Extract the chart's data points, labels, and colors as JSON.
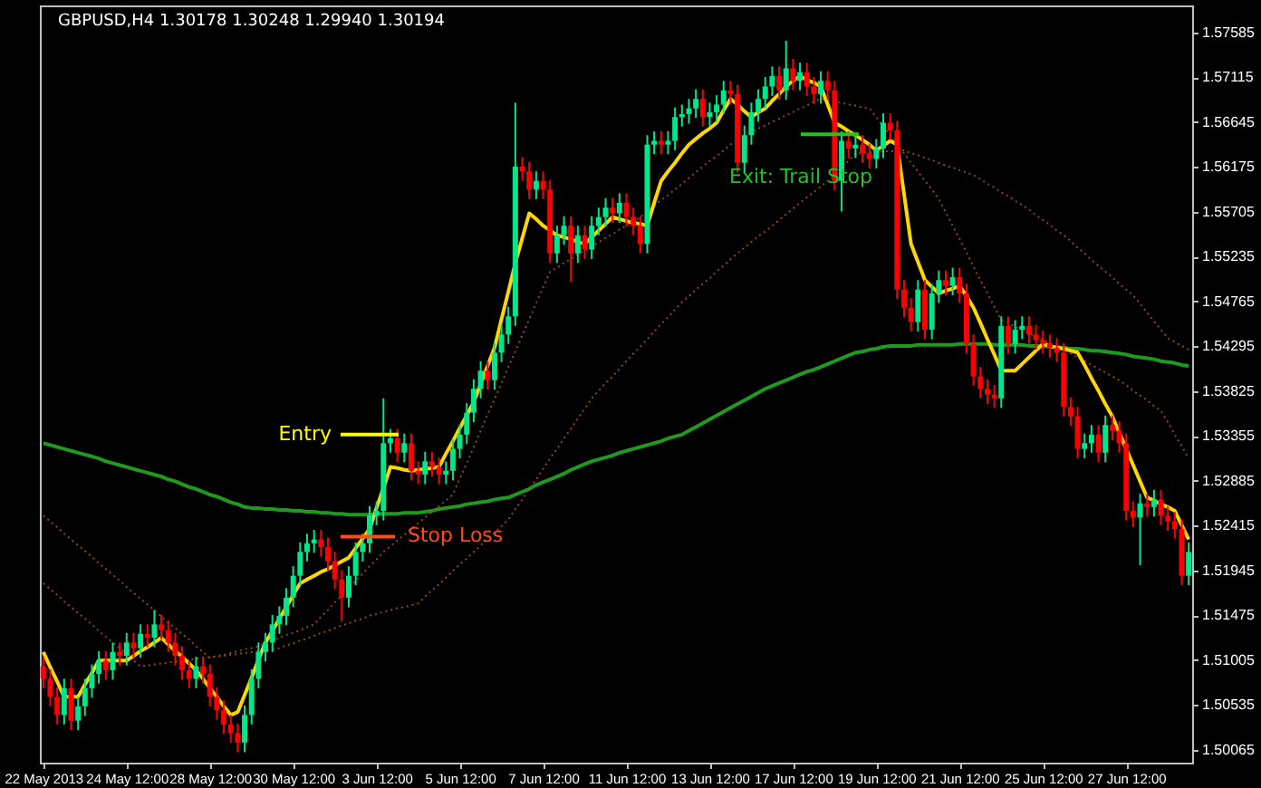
{
  "chart_data": {
    "type": "candlestick",
    "title": "GBPUSD,H4  1.30178 1.30248 1.29940 1.30194",
    "categories": [
      "22 May 2013",
      null,
      null,
      null,
      null,
      null,
      null,
      null,
      null,
      null,
      null,
      null,
      "24 May 12:00",
      null,
      null,
      null,
      null,
      null,
      null,
      null,
      null,
      null,
      null,
      null,
      "28 May 12:00",
      null,
      null,
      null,
      null,
      null,
      null,
      null,
      null,
      null,
      null,
      null,
      "30 May 12:00",
      null,
      null,
      null,
      null,
      null,
      null,
      null,
      null,
      null,
      null,
      null,
      "3 Jun 12:00",
      null,
      null,
      null,
      null,
      null,
      null,
      null,
      null,
      null,
      null,
      null,
      "5 Jun 12:00",
      null,
      null,
      null,
      null,
      null,
      null,
      null,
      null,
      null,
      null,
      null,
      "7 Jun 12:00",
      null,
      null,
      null,
      null,
      null,
      null,
      null,
      null,
      null,
      null,
      null,
      "11 Jun 12:00",
      null,
      null,
      null,
      null,
      null,
      null,
      null,
      null,
      null,
      null,
      null,
      "13 Jun 12:00",
      null,
      null,
      null,
      null,
      null,
      null,
      null,
      null,
      null,
      null,
      null,
      "17 Jun 12:00",
      null,
      null,
      null,
      null,
      null,
      null,
      null,
      null,
      null,
      null,
      null,
      "19 Jun 12:00",
      null,
      null,
      null,
      null,
      null,
      null,
      null,
      null,
      null,
      null,
      null,
      "21 Jun 12:00",
      null,
      null,
      null,
      null,
      null,
      null,
      null,
      null,
      null,
      null,
      null,
      "25 Jun 12:00",
      null,
      null,
      null,
      null,
      null,
      null,
      null,
      null,
      null,
      null,
      null,
      "27 Jun 12:00",
      null,
      null,
      null,
      null,
      null,
      null,
      null,
      null,
      null
    ],
    "ohlc": [
      [
        1.5094,
        1.5104,
        1.5071,
        1.5081
      ],
      [
        1.5081,
        1.5091,
        1.5052,
        1.5062
      ],
      [
        1.5062,
        1.5072,
        1.5033,
        1.5043
      ],
      [
        1.5043,
        1.5081,
        1.5033,
        1.5071
      ],
      [
        1.5071,
        1.5081,
        1.5027,
        1.5037
      ],
      [
        1.5037,
        1.5062,
        1.5027,
        1.5052
      ],
      [
        1.5052,
        1.5081,
        1.5042,
        1.5071
      ],
      [
        1.5071,
        1.5096,
        1.5061,
        1.5086
      ],
      [
        1.5086,
        1.511,
        1.5076,
        1.51
      ],
      [
        1.51,
        1.511,
        1.508,
        1.509
      ],
      [
        1.509,
        1.5119,
        1.508,
        1.5109
      ],
      [
        1.5109,
        1.5119,
        1.5095,
        1.5105
      ],
      [
        1.5105,
        1.5129,
        1.5095,
        1.5119
      ],
      [
        1.5119,
        1.5129,
        1.5103,
        1.5113
      ],
      [
        1.5113,
        1.5138,
        1.5103,
        1.5128
      ],
      [
        1.5128,
        1.5138,
        1.5114,
        1.5124
      ],
      [
        1.5124,
        1.5153,
        1.5114,
        1.5138
      ],
      [
        1.5138,
        1.5148,
        1.5122,
        1.5132
      ],
      [
        1.5132,
        1.5142,
        1.5109,
        1.5119
      ],
      [
        1.5119,
        1.5129,
        1.5095,
        1.5105
      ],
      [
        1.5105,
        1.5115,
        1.508,
        1.509
      ],
      [
        1.509,
        1.51,
        1.5071,
        1.5081
      ],
      [
        1.5081,
        1.5104,
        1.5071,
        1.5094
      ],
      [
        1.5094,
        1.5104,
        1.5076,
        1.5086
      ],
      [
        1.5086,
        1.5096,
        1.5052,
        1.5062
      ],
      [
        1.5062,
        1.5072,
        1.5038,
        1.5048
      ],
      [
        1.5048,
        1.5058,
        1.5023,
        1.5033
      ],
      [
        1.5033,
        1.5043,
        1.5014,
        1.5024
      ],
      [
        1.5024,
        1.5034,
        1.5004,
        1.5014
      ],
      [
        1.5014,
        1.5053,
        1.5004,
        1.5043
      ],
      [
        1.5043,
        1.5091,
        1.5033,
        1.5081
      ],
      [
        1.5081,
        1.5119,
        1.5071,
        1.5109
      ],
      [
        1.5109,
        1.5129,
        1.5099,
        1.5119
      ],
      [
        1.5119,
        1.5148,
        1.5109,
        1.5138
      ],
      [
        1.5138,
        1.5157,
        1.5128,
        1.5147
      ],
      [
        1.5147,
        1.5176,
        1.5137,
        1.5166
      ],
      [
        1.5166,
        1.5199,
        1.5156,
        1.5189
      ],
      [
        1.5189,
        1.5224,
        1.5179,
        1.5214
      ],
      [
        1.5214,
        1.5233,
        1.5204,
        1.5223
      ],
      [
        1.5223,
        1.5237,
        1.5213,
        1.5227
      ],
      [
        1.5227,
        1.5237,
        1.5209,
        1.5219
      ],
      [
        1.5219,
        1.5229,
        1.5194,
        1.5204
      ],
      [
        1.5204,
        1.5214,
        1.5175,
        1.5185
      ],
      [
        1.5185,
        1.5195,
        1.5141,
        1.5166
      ],
      [
        1.5166,
        1.5199,
        1.5156,
        1.5189
      ],
      [
        1.5189,
        1.5224,
        1.5179,
        1.5214
      ],
      [
        1.5214,
        1.5233,
        1.5204,
        1.5223
      ],
      [
        1.5223,
        1.5262,
        1.5213,
        1.5252
      ],
      [
        1.5252,
        1.5267,
        1.5242,
        1.5257
      ],
      [
        1.5257,
        1.5375,
        1.5247,
        1.5328
      ],
      [
        1.5328,
        1.5343,
        1.5318,
        1.5333
      ],
      [
        1.5333,
        1.5343,
        1.5308,
        1.5318
      ],
      [
        1.5318,
        1.5338,
        1.5308,
        1.5328
      ],
      [
        1.5328,
        1.5338,
        1.5289,
        1.5299
      ],
      [
        1.5299,
        1.5309,
        1.5285,
        1.5295
      ],
      [
        1.5295,
        1.5319,
        1.5285,
        1.5309
      ],
      [
        1.5309,
        1.5319,
        1.5293,
        1.5303
      ],
      [
        1.5303,
        1.5313,
        1.5285,
        1.5295
      ],
      [
        1.5295,
        1.5309,
        1.5285,
        1.5299
      ],
      [
        1.5299,
        1.5332,
        1.5289,
        1.5322
      ],
      [
        1.5322,
        1.5347,
        1.5312,
        1.5337
      ],
      [
        1.5337,
        1.537,
        1.5327,
        1.536
      ],
      [
        1.536,
        1.5395,
        1.535,
        1.5385
      ],
      [
        1.5385,
        1.5414,
        1.5375,
        1.5404
      ],
      [
        1.5404,
        1.5414,
        1.5384,
        1.5394
      ],
      [
        1.5394,
        1.5433,
        1.5384,
        1.5423
      ],
      [
        1.5423,
        1.5452,
        1.5413,
        1.5442
      ],
      [
        1.5442,
        1.5471,
        1.5432,
        1.5461
      ],
      [
        1.5461,
        1.5685,
        1.5451,
        1.5618
      ],
      [
        1.5618,
        1.5628,
        1.5603,
        1.5613
      ],
      [
        1.5613,
        1.5623,
        1.5584,
        1.5594
      ],
      [
        1.5594,
        1.5613,
        1.5584,
        1.5603
      ],
      [
        1.5603,
        1.5613,
        1.5584,
        1.5594
      ],
      [
        1.5594,
        1.5604,
        1.5517,
        1.5527
      ],
      [
        1.5527,
        1.5556,
        1.5517,
        1.5546
      ],
      [
        1.5546,
        1.5566,
        1.5536,
        1.5556
      ],
      [
        1.5556,
        1.5566,
        1.5497,
        1.5527
      ],
      [
        1.5527,
        1.5556,
        1.5517,
        1.5546
      ],
      [
        1.5546,
        1.5556,
        1.5521,
        1.5531
      ],
      [
        1.5531,
        1.5566,
        1.5521,
        1.5556
      ],
      [
        1.5556,
        1.5575,
        1.5546,
        1.5565
      ],
      [
        1.5565,
        1.5585,
        1.5555,
        1.5575
      ],
      [
        1.5575,
        1.5585,
        1.5559,
        1.5569
      ],
      [
        1.5569,
        1.559,
        1.5559,
        1.558
      ],
      [
        1.558,
        1.559,
        1.5555,
        1.5565
      ],
      [
        1.5565,
        1.5575,
        1.5546,
        1.5556
      ],
      [
        1.5556,
        1.5566,
        1.5527,
        1.5537
      ],
      [
        1.5537,
        1.5651,
        1.5527,
        1.5641
      ],
      [
        1.5641,
        1.5655,
        1.5631,
        1.5645
      ],
      [
        1.5645,
        1.5655,
        1.5631,
        1.5641
      ],
      [
        1.5641,
        1.5655,
        1.5631,
        1.5645
      ],
      [
        1.5645,
        1.568,
        1.5635,
        1.567
      ],
      [
        1.567,
        1.5683,
        1.566,
        1.5673
      ],
      [
        1.5673,
        1.5689,
        1.5663,
        1.5679
      ],
      [
        1.5679,
        1.5699,
        1.5669,
        1.5689
      ],
      [
        1.5689,
        1.5699,
        1.566,
        1.567
      ],
      [
        1.567,
        1.5685,
        1.566,
        1.5675
      ],
      [
        1.5675,
        1.5693,
        1.5665,
        1.5683
      ],
      [
        1.5683,
        1.5708,
        1.5673,
        1.5698
      ],
      [
        1.5698,
        1.5708,
        1.5684,
        1.5694
      ],
      [
        1.5694,
        1.5704,
        1.5612,
        1.5622
      ],
      [
        1.5622,
        1.5661,
        1.5612,
        1.5651
      ],
      [
        1.5651,
        1.5685,
        1.5641,
        1.5675
      ],
      [
        1.5675,
        1.5699,
        1.5665,
        1.5689
      ],
      [
        1.5689,
        1.5712,
        1.5679,
        1.5702
      ],
      [
        1.5702,
        1.5723,
        1.5692,
        1.5713
      ],
      [
        1.5713,
        1.5723,
        1.5688,
        1.5698
      ],
      [
        1.5698,
        1.575,
        1.5688,
        1.5721
      ],
      [
        1.5721,
        1.5731,
        1.5698,
        1.5708
      ],
      [
        1.5708,
        1.5727,
        1.5698,
        1.5717
      ],
      [
        1.5717,
        1.5727,
        1.5692,
        1.5702
      ],
      [
        1.5702,
        1.5712,
        1.5684,
        1.5694
      ],
      [
        1.5694,
        1.5718,
        1.5684,
        1.5708
      ],
      [
        1.5708,
        1.5718,
        1.5688,
        1.5698
      ],
      [
        1.5698,
        1.5708,
        1.5593,
        1.5603
      ],
      [
        1.5603,
        1.5655,
        1.5571,
        1.5645
      ],
      [
        1.5645,
        1.5655,
        1.5627,
        1.5637
      ],
      [
        1.5637,
        1.5651,
        1.5627,
        1.5641
      ],
      [
        1.5641,
        1.5651,
        1.5622,
        1.5632
      ],
      [
        1.5632,
        1.5642,
        1.5616,
        1.5626
      ],
      [
        1.5626,
        1.5647,
        1.5616,
        1.5637
      ],
      [
        1.5637,
        1.5674,
        1.5627,
        1.5664
      ],
      [
        1.5664,
        1.5674,
        1.5646,
        1.5656
      ],
      [
        1.5656,
        1.5666,
        1.5479,
        1.5489
      ],
      [
        1.5489,
        1.5499,
        1.546,
        1.547
      ],
      [
        1.547,
        1.548,
        1.5445,
        1.5455
      ],
      [
        1.5455,
        1.5499,
        1.5445,
        1.5489
      ],
      [
        1.5489,
        1.5499,
        1.5437,
        1.5447
      ],
      [
        1.5447,
        1.5495,
        1.5437,
        1.5485
      ],
      [
        1.5485,
        1.5509,
        1.5475,
        1.5499
      ],
      [
        1.5499,
        1.5509,
        1.5483,
        1.5493
      ],
      [
        1.5493,
        1.5512,
        1.5483,
        1.5502
      ],
      [
        1.5502,
        1.5512,
        1.5475,
        1.5485
      ],
      [
        1.5485,
        1.5495,
        1.5422,
        1.5432
      ],
      [
        1.5432,
        1.5442,
        1.5388,
        1.5398
      ],
      [
        1.5398,
        1.5408,
        1.5375,
        1.5385
      ],
      [
        1.5385,
        1.5395,
        1.5369,
        1.5379
      ],
      [
        1.5379,
        1.5389,
        1.5365,
        1.5375
      ],
      [
        1.5375,
        1.5461,
        1.5365,
        1.5451
      ],
      [
        1.5451,
        1.5461,
        1.5422,
        1.5432
      ],
      [
        1.5432,
        1.5457,
        1.5422,
        1.5447
      ],
      [
        1.5447,
        1.5461,
        1.5437,
        1.5451
      ],
      [
        1.5451,
        1.5461,
        1.5432,
        1.5442
      ],
      [
        1.5442,
        1.5452,
        1.5426,
        1.5436
      ],
      [
        1.5436,
        1.5446,
        1.5422,
        1.5432
      ],
      [
        1.5432,
        1.5442,
        1.5418,
        1.5428
      ],
      [
        1.5428,
        1.5438,
        1.5413,
        1.5423
      ],
      [
        1.5423,
        1.5433,
        1.5356,
        1.5366
      ],
      [
        1.5366,
        1.5376,
        1.5346,
        1.5356
      ],
      [
        1.5356,
        1.5366,
        1.5312,
        1.5322
      ],
      [
        1.5322,
        1.5338,
        1.5312,
        1.5328
      ],
      [
        1.5328,
        1.5347,
        1.5318,
        1.5337
      ],
      [
        1.5337,
        1.5347,
        1.5308,
        1.5318
      ],
      [
        1.5318,
        1.5357,
        1.5308,
        1.5347
      ],
      [
        1.5347,
        1.5357,
        1.5331,
        1.5341
      ],
      [
        1.5341,
        1.5351,
        1.5318,
        1.5328
      ],
      [
        1.5328,
        1.5338,
        1.5247,
        1.5257
      ],
      [
        1.5257,
        1.5267,
        1.524,
        1.525
      ],
      [
        1.525,
        1.5275,
        1.52,
        1.5265
      ],
      [
        1.5265,
        1.5275,
        1.5251,
        1.5261
      ],
      [
        1.5261,
        1.5279,
        1.5251,
        1.5269
      ],
      [
        1.5269,
        1.5279,
        1.5242,
        1.5252
      ],
      [
        1.5252,
        1.5262,
        1.5236,
        1.5246
      ],
      [
        1.5246,
        1.5256,
        1.5228,
        1.5238
      ],
      [
        1.5238,
        1.5248,
        1.5179,
        1.5189
      ],
      [
        1.5189,
        1.5224,
        1.5179,
        1.5214
      ]
    ],
    "colors": [
      "#ff0000",
      "#ff0000",
      "#ff0000",
      "#00e68a",
      "#ff0000",
      "#00e68a",
      "#00e68a",
      "#00e68a",
      "#00e68a",
      "#ff0000",
      "#00e68a",
      "#ff0000",
      "#00e68a",
      "#ff0000",
      "#00e68a",
      "#ff0000",
      "#00e68a",
      "#ff0000",
      "#ff0000",
      "#ff0000",
      "#ff0000",
      "#ff0000",
      "#00e68a",
      "#ff0000",
      "#ff0000",
      "#ff0000",
      "#ff0000",
      "#ff0000",
      "#ff0000",
      "#00e68a",
      "#00e68a",
      "#00e68a",
      "#00e68a",
      "#00e68a",
      "#00e68a",
      "#00e68a",
      "#00e68a",
      "#00e68a",
      "#00e68a",
      "#00e68a",
      "#ff0000",
      "#ff0000",
      "#ff0000",
      "#ff0000",
      "#00e68a",
      "#00e68a",
      "#00e68a",
      "#00e68a",
      "#00e68a",
      "#00e68a",
      "#00e68a",
      "#ff0000",
      "#00e68a",
      "#ff0000",
      "#ff0000",
      "#00e68a",
      "#ff0000",
      "#ff0000",
      "#00e68a",
      "#00e68a",
      "#00e68a",
      "#00e68a",
      "#00e68a",
      "#00e68a",
      "#ff0000",
      "#00e68a",
      "#00e68a",
      "#00e68a",
      "#00e68a",
      "#ff0000",
      "#ff0000",
      "#00e68a",
      "#ff0000",
      "#ff0000",
      "#00e68a",
      "#00e68a",
      "#ff0000",
      "#00e68a",
      "#ff0000",
      "#00e68a",
      "#00e68a",
      "#00e68a",
      "#ff0000",
      "#00e68a",
      "#ff0000",
      "#ff0000",
      "#ff0000",
      "#00e68a",
      "#00e68a",
      "#ff0000",
      "#00e68a",
      "#00e68a",
      "#00e68a",
      "#00e68a",
      "#00e68a",
      "#ff0000",
      "#00e68a",
      "#00e68a",
      "#00e68a",
      "#ff0000",
      "#ff0000",
      "#00e68a",
      "#00e68a",
      "#00e68a",
      "#00e68a",
      "#00e68a",
      "#ff0000",
      "#00e68a",
      "#ff0000",
      "#00e68a",
      "#ff0000",
      "#ff0000",
      "#00e68a",
      "#ff0000",
      "#ff0000",
      "#00e68a",
      "#ff0000",
      "#00e68a",
      "#ff0000",
      "#ff0000",
      "#00e68a",
      "#00e68a",
      "#ff0000",
      "#ff0000",
      "#ff0000",
      "#ff0000",
      "#00e68a",
      "#ff0000",
      "#00e68a",
      "#00e68a",
      "#ff0000",
      "#00e68a",
      "#ff0000",
      "#ff0000",
      "#ff0000",
      "#ff0000",
      "#ff0000",
      "#ff0000",
      "#00e68a",
      "#ff0000",
      "#00e68a",
      "#00e68a",
      "#ff0000",
      "#ff0000",
      "#ff0000",
      "#ff0000",
      "#ff0000",
      "#ff0000",
      "#ff0000",
      "#ff0000",
      "#00e68a",
      "#00e68a",
      "#ff0000",
      "#00e68a",
      "#ff0000",
      "#ff0000",
      "#ff0000",
      "#ff0000",
      "#00e68a",
      "#ff0000",
      "#00e68a",
      "#ff0000",
      "#ff0000",
      "#ff0000",
      "#ff0000",
      "#00e68a"
    ],
    "ylim": [
      1.4993,
      1.5787
    ],
    "yticks": [
      1.50065,
      1.50535,
      1.51005,
      1.51475,
      1.51945,
      1.52415,
      1.52885,
      1.53355,
      1.53825,
      1.54295,
      1.54765,
      1.55235,
      1.55705,
      1.56175,
      1.56645,
      1.57115,
      1.57585
    ],
    "grid": false,
    "series": [
      {
        "type": "line",
        "color": "#1f9a1f",
        "line_style": "solid",
        "values": [
          1.5328,
          1.5326,
          1.5324,
          1.5322,
          1.532,
          1.5318,
          1.5316,
          1.5314,
          1.5312,
          1.5309,
          1.5307,
          1.5305,
          1.5303,
          1.5301,
          1.5299,
          1.5297,
          1.5295,
          1.5293,
          1.529,
          1.5288,
          1.5285,
          1.5282,
          1.528,
          1.5277,
          1.5274,
          1.5272,
          1.5269,
          1.5266,
          1.5264,
          1.5261,
          1.526,
          1.526,
          1.5259,
          1.5259,
          1.5258,
          1.5258,
          1.5257,
          1.5257,
          1.5256,
          1.5256,
          1.5255,
          1.5255,
          1.5254,
          1.5254,
          1.5253,
          1.5253,
          1.5253,
          1.5253,
          1.5254,
          1.5254,
          1.5254,
          1.5254,
          1.5255,
          1.5255,
          1.5255,
          1.5256,
          1.5257,
          1.5259,
          1.526,
          1.5261,
          1.5262,
          1.5264,
          1.5265,
          1.5266,
          1.5267,
          1.5269,
          1.527,
          1.5271,
          1.5274,
          1.5277,
          1.528,
          1.5284,
          1.5287,
          1.529,
          1.5293,
          1.5296,
          1.53,
          1.5303,
          1.5306,
          1.5309,
          1.5311,
          1.5313,
          1.5315,
          1.5318,
          1.532,
          1.5322,
          1.5324,
          1.5326,
          1.5328,
          1.533,
          1.5333,
          1.5335,
          1.5337,
          1.5341,
          1.5345,
          1.5349,
          1.5353,
          1.5357,
          1.5361,
          1.5365,
          1.5369,
          1.5373,
          1.5377,
          1.5381,
          1.5385,
          1.5388,
          1.5391,
          1.5394,
          1.5397,
          1.54,
          1.5403,
          1.5405,
          1.5408,
          1.5411,
          1.5414,
          1.5417,
          1.542,
          1.5423,
          1.5424,
          1.5426,
          1.5427,
          1.5429,
          1.543,
          1.543,
          1.543,
          1.543,
          1.5431,
          1.5431,
          1.5431,
          1.5431,
          1.5431,
          1.5431,
          1.5432,
          1.5432,
          1.5432,
          1.5432,
          1.5432,
          1.5431,
          1.5431,
          1.5431,
          1.5431,
          1.5431,
          1.543,
          1.543,
          1.543,
          1.5429,
          1.5429,
          1.5428,
          1.5427,
          1.5427,
          1.5426,
          1.5425,
          1.5425,
          1.5424,
          1.5423,
          1.5422,
          1.5421,
          1.5419,
          1.5418,
          1.5417,
          1.5416,
          1.5414,
          1.5413,
          1.5412,
          1.541,
          1.5409
        ]
      },
      {
        "type": "line",
        "color": "#8a4a1c",
        "line_style": "dotted",
        "values": [
          1.5181,
          1.5175,
          1.5169,
          1.5162,
          1.5156,
          1.515,
          1.5144,
          1.5138,
          1.5131,
          1.5125,
          1.5119,
          1.5113,
          1.5106,
          1.51,
          1.5094,
          1.5095,
          1.5096,
          1.5097,
          1.5098,
          1.5099,
          1.51,
          1.5101,
          1.5102,
          1.5103,
          1.5104,
          1.5104,
          1.5105,
          1.5106,
          1.5107,
          1.5108,
          1.5109,
          1.511,
          1.5111,
          1.5112,
          1.5113,
          1.5116,
          1.5118,
          1.5121,
          1.5123,
          1.5126,
          1.5129,
          1.5131,
          1.5134,
          1.5137,
          1.5139,
          1.5142,
          1.5144,
          1.5147,
          1.5149,
          1.5151,
          1.5153,
          1.5155,
          1.5156,
          1.5158,
          1.516,
          1.5167,
          1.5174,
          1.518,
          1.5187,
          1.5194,
          1.5201,
          1.5207,
          1.5214,
          1.5221,
          1.5228,
          1.5234,
          1.5241,
          1.5248,
          1.5259,
          1.5269,
          1.528,
          1.529,
          1.5301,
          1.5312,
          1.5322,
          1.5333,
          1.5343,
          1.5354,
          1.5364,
          1.5375,
          1.5383,
          1.5391,
          1.5398,
          1.5406,
          1.5414,
          1.5422,
          1.5429,
          1.5437,
          1.5445,
          1.5453,
          1.546,
          1.5468,
          1.5476,
          1.5482,
          1.5489,
          1.5495,
          1.5501,
          1.5508,
          1.5514,
          1.5521,
          1.5527,
          1.5533,
          1.5539,
          1.5545,
          1.555,
          1.5556,
          1.5562,
          1.5568,
          1.5574,
          1.558,
          1.5586,
          1.5591,
          1.5597,
          1.5603,
          1.5609,
          1.5617,
          1.5624,
          1.5632,
          1.5632,
          1.5633,
          1.5633,
          1.5634,
          1.5634,
          1.5635,
          1.5635,
          1.5632,
          1.563,
          1.5627,
          1.5625,
          1.5622,
          1.5619,
          1.5617,
          1.5614,
          1.5612,
          1.5609,
          1.5605,
          1.56,
          1.5596,
          1.5591,
          1.5587,
          1.5582,
          1.5578,
          1.5573,
          1.5567,
          1.5562,
          1.5557,
          1.5551,
          1.5546,
          1.554,
          1.5533,
          1.5527,
          1.552,
          1.5514,
          1.5508,
          1.5502,
          1.5495,
          1.5489,
          1.5483,
          1.5474,
          1.5465,
          1.5456,
          1.5447,
          1.5438,
          1.5434,
          1.543,
          1.5426
        ]
      },
      {
        "type": "line",
        "color": "#8a4a1c",
        "line_style": "dotted",
        "values": [
          1.5252,
          1.5246,
          1.524,
          1.5233,
          1.5227,
          1.5221,
          1.5215,
          1.5209,
          1.5202,
          1.5196,
          1.519,
          1.5184,
          1.5177,
          1.5171,
          1.5165,
          1.5159,
          1.5153,
          1.5146,
          1.514,
          1.5134,
          1.5128,
          1.5122,
          1.5115,
          1.5109,
          1.5103,
          1.5105,
          1.5106,
          1.5108,
          1.511,
          1.5112,
          1.5113,
          1.5115,
          1.5118,
          1.5121,
          1.5124,
          1.5127,
          1.5129,
          1.5132,
          1.5135,
          1.5138,
          1.5146,
          1.5153,
          1.5161,
          1.5168,
          1.5176,
          1.5184,
          1.5191,
          1.5199,
          1.5206,
          1.5214,
          1.522,
          1.5226,
          1.5232,
          1.5238,
          1.5244,
          1.525,
          1.5256,
          1.5262,
          1.5268,
          1.5274,
          1.5291,
          1.5307,
          1.5324,
          1.5341,
          1.5358,
          1.5374,
          1.5391,
          1.5408,
          1.5424,
          1.5441,
          1.5458,
          1.5475,
          1.5491,
          1.5508,
          1.5512,
          1.5517,
          1.5521,
          1.5526,
          1.553,
          1.5534,
          1.5539,
          1.5543,
          1.5547,
          1.5552,
          1.5556,
          1.5561,
          1.5565,
          1.5571,
          1.5577,
          1.5583,
          1.5588,
          1.5594,
          1.56,
          1.5606,
          1.5612,
          1.5618,
          1.5624,
          1.5629,
          1.5635,
          1.5641,
          1.5647,
          1.5651,
          1.5654,
          1.5658,
          1.5661,
          1.5665,
          1.5668,
          1.5672,
          1.5675,
          1.5679,
          1.5682,
          1.5686,
          1.5689,
          1.5688,
          1.5686,
          1.5685,
          1.5683,
          1.5682,
          1.568,
          1.5679,
          1.567,
          1.566,
          1.5651,
          1.5641,
          1.5632,
          1.5622,
          1.5613,
          1.5603,
          1.5594,
          1.5584,
          1.557,
          1.5556,
          1.5542,
          1.5528,
          1.5513,
          1.5499,
          1.5485,
          1.5471,
          1.5457,
          1.5454,
          1.545,
          1.5447,
          1.5443,
          1.544,
          1.5436,
          1.5433,
          1.5429,
          1.5426,
          1.5422,
          1.5418,
          1.5414,
          1.541,
          1.5406,
          1.5402,
          1.5398,
          1.5394,
          1.5389,
          1.5383,
          1.5378,
          1.5373,
          1.5367,
          1.5362,
          1.535,
          1.5337,
          1.5325,
          1.5312
        ]
      },
      {
        "type": "line",
        "color": "#ffd700",
        "line_style": "solid",
        "values": [
          1.5109,
          1.5093,
          1.5078,
          1.5062,
          1.5062,
          1.5062,
          1.5075,
          1.5087,
          1.51,
          1.51,
          1.51,
          1.51,
          1.51,
          1.5105,
          1.511,
          1.5114,
          1.5119,
          1.5124,
          1.5117,
          1.511,
          1.5104,
          1.5097,
          1.509,
          1.5081,
          1.5071,
          1.5062,
          1.5052,
          1.5043,
          1.5046,
          1.5064,
          1.5082,
          1.5101,
          1.5119,
          1.5131,
          1.5144,
          1.5156,
          1.5169,
          1.5181,
          1.5185,
          1.5189,
          1.5193,
          1.5196,
          1.52,
          1.5204,
          1.5208,
          1.5218,
          1.5228,
          1.5238,
          1.526,
          1.5281,
          1.5303,
          1.5302,
          1.53,
          1.5299,
          1.53,
          1.5301,
          1.5302,
          1.5303,
          1.5317,
          1.533,
          1.5344,
          1.5357,
          1.5371,
          1.539,
          1.5409,
          1.5428,
          1.5458,
          1.5487,
          1.5517,
          1.5543,
          1.5569,
          1.5563,
          1.5556,
          1.5551,
          1.5546,
          1.5544,
          1.5542,
          1.5539,
          1.5537,
          1.5544,
          1.5551,
          1.5558,
          1.5565,
          1.5563,
          1.5561,
          1.5559,
          1.5558,
          1.5556,
          1.558,
          1.5603,
          1.5613,
          1.5622,
          1.5632,
          1.5641,
          1.5647,
          1.5653,
          1.5658,
          1.5664,
          1.5677,
          1.5689,
          1.5683,
          1.5676,
          1.567,
          1.5675,
          1.5679,
          1.5687,
          1.5694,
          1.5702,
          1.5708,
          1.5713,
          1.5709,
          1.5706,
          1.5702,
          1.5683,
          1.5664,
          1.566,
          1.5655,
          1.5651,
          1.5646,
          1.5641,
          1.5635,
          1.564,
          1.5645,
          1.5641,
          1.5589,
          1.5537,
          1.5518,
          1.5499,
          1.5492,
          1.5485,
          1.5488,
          1.549,
          1.5493,
          1.5482,
          1.547,
          1.5454,
          1.5437,
          1.5421,
          1.5404,
          1.5404,
          1.5404,
          1.5411,
          1.5418,
          1.5425,
          1.5432,
          1.543,
          1.5428,
          1.5427,
          1.5425,
          1.5423,
          1.541,
          1.5396,
          1.5383,
          1.5369,
          1.5356,
          1.5339,
          1.5322,
          1.5305,
          1.5288,
          1.5271,
          1.5268,
          1.5264,
          1.5261,
          1.5257,
          1.5242,
          1.5227
        ]
      }
    ],
    "ref_lines": [
      {
        "axis": "y",
        "value": 1.5337,
        "label": "Entry",
        "color": "#ffff00"
      },
      {
        "axis": "y",
        "value": 1.523,
        "label": "Stop Loss",
        "color": "#ff4a1a"
      },
      {
        "axis": "y",
        "value": 1.5652,
        "label": "Exit: Trail Stop",
        "color": "#22c322"
      }
    ]
  }
}
